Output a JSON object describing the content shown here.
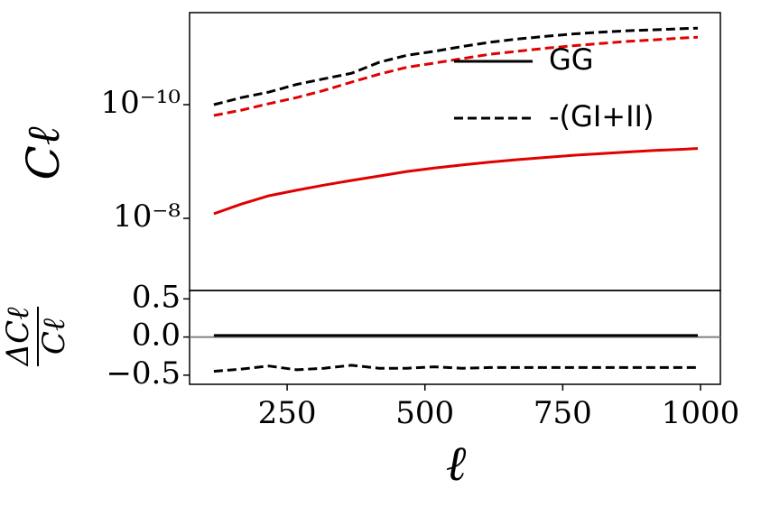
{
  "chart_data": [
    {
      "type": "line",
      "ylabel": "Cℓ",
      "x": [
        117,
        167,
        217,
        267,
        317,
        367,
        417,
        467,
        517,
        567,
        617,
        667,
        717,
        767,
        817,
        867,
        917,
        967,
        995
      ],
      "xlim": [
        73,
        1036
      ],
      "ylim": [
        1.86e-07,
        2.4e-12
      ],
      "log_y": true,
      "yticks": [
        {
          "value": 1e-08,
          "label": "10⁻⁸"
        },
        {
          "value": 1e-10,
          "label": "10⁻¹⁰"
        }
      ],
      "series": [
        {
          "color": "#e00000",
          "dash": "solid",
          "values": [
            8.3e-09,
            5.6e-09,
            4e-09,
            3.2e-09,
            2.6e-09,
            2.15e-09,
            1.8e-09,
            1.5e-09,
            1.3e-09,
            1.15e-09,
            1.03e-09,
            9.3e-10,
            8.5e-10,
            7.8e-10,
            7.3e-10,
            6.8e-10,
            6.4e-10,
            6.1e-10,
            5.9e-10
          ]
        },
        {
          "color": "#e00000",
          "dash": "dashed",
          "values": [
            1.55e-10,
            1.25e-10,
            9.6e-11,
            7.5e-11,
            5.6e-11,
            4e-11,
            2.9e-11,
            2.2e-11,
            1.85e-11,
            1.55e-11,
            1.3e-11,
            1.15e-11,
            1.02e-11,
            9.2e-12,
            8.4e-12,
            7.7e-12,
            7.2e-12,
            6.7e-12,
            6.5e-12
          ]
        },
        {
          "color": "#000000",
          "dash": "dashed",
          "values": [
            1e-10,
            7.5e-11,
            6e-11,
            4.4e-11,
            3.5e-11,
            2.8e-11,
            1.8e-11,
            1.35e-11,
            1.15e-11,
            9.5e-12,
            8e-12,
            7e-12,
            6.3e-12,
            5.7e-12,
            5.3e-12,
            5e-12,
            4.8e-12,
            4.6e-12,
            4.5e-12
          ]
        }
      ],
      "legend": [
        {
          "name": "GG",
          "color": "#000000",
          "dash": "solid"
        },
        {
          "name": "-(GI+II)",
          "color": "#000000",
          "dash": "dashed"
        }
      ],
      "legend_position": "upper right"
    },
    {
      "type": "line",
      "ylabel": [
        "ΔCℓ",
        "Cℓ"
      ],
      "xlabel": "ℓ",
      "x": [
        117,
        167,
        217,
        267,
        317,
        367,
        417,
        467,
        517,
        567,
        617,
        667,
        717,
        767,
        817,
        867,
        917,
        967,
        995
      ],
      "xlim": [
        73,
        1036
      ],
      "ylim": [
        -0.62,
        0.61
      ],
      "xticks": [
        250,
        500,
        750,
        1000
      ],
      "yticks": [
        {
          "value": 0.5,
          "label": "0.5"
        },
        {
          "value": 0,
          "label": "0.0"
        },
        {
          "value": -0.5,
          "label": "−0.5"
        }
      ],
      "zero_line_color": "#808080",
      "series": [
        {
          "color": "#000000",
          "dash": "solid",
          "values": [
            0.02,
            0.02,
            0.02,
            0.02,
            0.02,
            0.02,
            0.02,
            0.02,
            0.02,
            0.02,
            0.02,
            0.02,
            0.02,
            0.02,
            0.02,
            0.02,
            0.02,
            0.02,
            0.02
          ]
        },
        {
          "color": "#000000",
          "dash": "dashed",
          "values": [
            -0.45,
            -0.42,
            -0.38,
            -0.43,
            -0.41,
            -0.37,
            -0.41,
            -0.41,
            -0.39,
            -0.41,
            -0.4,
            -0.4,
            -0.4,
            -0.4,
            -0.4,
            -0.4,
            -0.4,
            -0.4,
            -0.4
          ]
        }
      ]
    }
  ]
}
